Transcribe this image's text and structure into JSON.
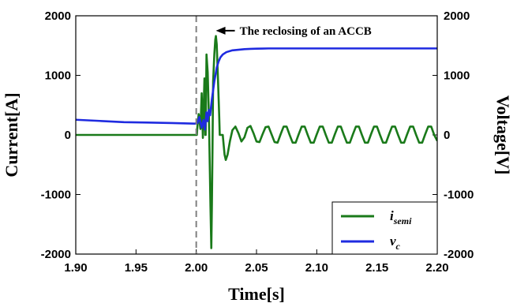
{
  "chart_data": {
    "type": "line",
    "title": "",
    "xlabel": "Time[s]",
    "ylabel_left": "Current[A]",
    "ylabel_right": "Voltage[V]",
    "xlim": [
      1.9,
      2.2
    ],
    "ylim_left": [
      -2000,
      2000
    ],
    "ylim_right": [
      -2000,
      2000
    ],
    "x_ticks": [
      "1.90",
      "1.95",
      "2.00",
      "2.05",
      "2.10",
      "2.15",
      "2.20"
    ],
    "y_ticks_left": [
      "2000",
      "1000",
      "0",
      "-1000",
      "-2000"
    ],
    "y_ticks_right": [
      "2000",
      "1000",
      "0",
      "-1000",
      "-2000"
    ],
    "grid": false,
    "legend_position": "bottom-right",
    "vline": {
      "x": 2.0,
      "style": "dashed"
    },
    "annotation": {
      "text": "The reclosing of an ACCB",
      "x": 2.015,
      "y": 1750
    },
    "series": [
      {
        "name": "i",
        "name_sub": "semi",
        "color": "#1a7a1a",
        "axis": "left",
        "points": [
          [
            1.9,
            0
          ],
          [
            2.0005,
            0
          ],
          [
            2.001,
            150
          ],
          [
            2.002,
            350
          ],
          [
            2.0035,
            100
          ],
          [
            2.0045,
            700
          ],
          [
            2.0055,
            -50
          ],
          [
            2.0068,
            950
          ],
          [
            2.0075,
            0
          ],
          [
            2.0078,
            0
          ],
          [
            2.0085,
            1350
          ],
          [
            2.0095,
            1050
          ],
          [
            2.0105,
            300
          ],
          [
            2.0112,
            -500
          ],
          [
            2.0118,
            -1200
          ],
          [
            2.0125,
            -1900
          ],
          [
            2.013,
            -1150
          ],
          [
            2.0135,
            -200
          ],
          [
            2.014,
            900
          ],
          [
            2.015,
            1350
          ],
          [
            2.0158,
            1600
          ],
          [
            2.0163,
            1660
          ],
          [
            2.017,
            1520
          ],
          [
            2.018,
            950
          ],
          [
            2.019,
            350
          ],
          [
            2.0195,
            0
          ],
          [
            2.022,
            0
          ],
          [
            2.0222,
            -50
          ],
          [
            2.0235,
            -330
          ],
          [
            2.0245,
            -420
          ],
          [
            2.026,
            -330
          ],
          [
            2.028,
            -100
          ],
          [
            2.03,
            80
          ],
          [
            2.0325,
            140
          ],
          [
            2.035,
            30
          ],
          [
            2.0375,
            -110
          ],
          [
            2.04,
            -40
          ],
          [
            2.0425,
            120
          ],
          [
            2.045,
            150
          ],
          [
            2.0475,
            30
          ],
          [
            2.05,
            -110
          ],
          [
            2.0525,
            -120
          ],
          [
            2.055,
            10
          ],
          [
            2.0575,
            130
          ],
          [
            2.06,
            140
          ],
          [
            2.0625,
            10
          ],
          [
            2.065,
            -120
          ],
          [
            2.0675,
            -130
          ],
          [
            2.07,
            10
          ],
          [
            2.0725,
            140
          ],
          [
            2.075,
            140
          ],
          [
            2.0775,
            0
          ],
          [
            2.08,
            -130
          ],
          [
            2.0825,
            -130
          ],
          [
            2.085,
            10
          ],
          [
            2.0875,
            140
          ],
          [
            2.09,
            140
          ],
          [
            2.0925,
            0
          ],
          [
            2.095,
            -130
          ],
          [
            2.0975,
            -130
          ],
          [
            2.1,
            10
          ],
          [
            2.1025,
            140
          ],
          [
            2.105,
            140
          ],
          [
            2.1075,
            0
          ],
          [
            2.11,
            -130
          ],
          [
            2.1125,
            -130
          ],
          [
            2.115,
            10
          ],
          [
            2.1175,
            140
          ],
          [
            2.12,
            140
          ],
          [
            2.1225,
            0
          ],
          [
            2.125,
            -130
          ],
          [
            2.1275,
            -130
          ],
          [
            2.13,
            10
          ],
          [
            2.1325,
            140
          ],
          [
            2.135,
            140
          ],
          [
            2.1375,
            0
          ],
          [
            2.14,
            -130
          ],
          [
            2.1425,
            -130
          ],
          [
            2.145,
            10
          ],
          [
            2.1475,
            140
          ],
          [
            2.15,
            140
          ],
          [
            2.1525,
            0
          ],
          [
            2.155,
            -130
          ],
          [
            2.1575,
            -130
          ],
          [
            2.16,
            10
          ],
          [
            2.1625,
            140
          ],
          [
            2.165,
            140
          ],
          [
            2.1675,
            0
          ],
          [
            2.17,
            -130
          ],
          [
            2.1725,
            -130
          ],
          [
            2.175,
            10
          ],
          [
            2.1775,
            140
          ],
          [
            2.18,
            140
          ],
          [
            2.1825,
            0
          ],
          [
            2.185,
            -130
          ],
          [
            2.1875,
            -130
          ],
          [
            2.19,
            10
          ],
          [
            2.1925,
            140
          ],
          [
            2.195,
            140
          ],
          [
            2.1975,
            0
          ],
          [
            2.2,
            -100
          ]
        ]
      },
      {
        "name": "v",
        "name_sub": "c",
        "color": "#1f2be0",
        "axis": "right",
        "points": [
          [
            1.9,
            255
          ],
          [
            1.92,
            235
          ],
          [
            1.94,
            215
          ],
          [
            1.96,
            208
          ],
          [
            1.98,
            200
          ],
          [
            1.999,
            190
          ],
          [
            2.001,
            200
          ],
          [
            2.0025,
            300
          ],
          [
            2.0045,
            120
          ],
          [
            2.006,
            250
          ],
          [
            2.0072,
            90
          ],
          [
            2.0085,
            380
          ],
          [
            2.0095,
            230
          ],
          [
            2.0105,
            420
          ],
          [
            2.0115,
            330
          ],
          [
            2.013,
            600
          ],
          [
            2.015,
            900
          ],
          [
            2.017,
            1130
          ],
          [
            2.0185,
            1230
          ],
          [
            2.02,
            1300
          ],
          [
            2.022,
            1350
          ],
          [
            2.025,
            1390
          ],
          [
            2.03,
            1420
          ],
          [
            2.035,
            1430
          ],
          [
            2.04,
            1440
          ],
          [
            2.045,
            1445
          ],
          [
            2.05,
            1448
          ],
          [
            2.055,
            1450
          ],
          [
            2.06,
            1452
          ],
          [
            2.1,
            1452
          ],
          [
            2.15,
            1452
          ],
          [
            2.2,
            1452
          ]
        ]
      }
    ]
  }
}
